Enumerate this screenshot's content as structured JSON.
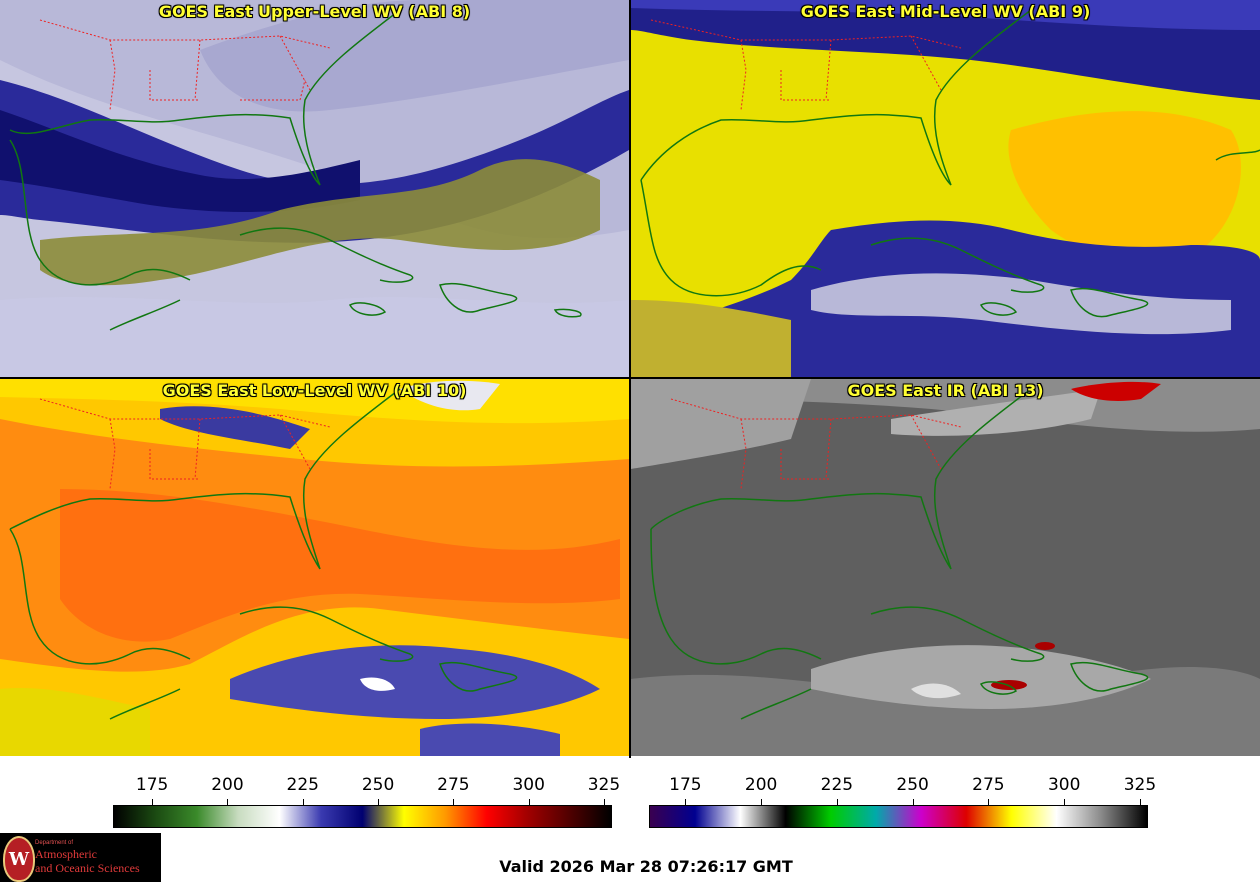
{
  "panels": [
    {
      "title": "GOES East Upper-Level WV (ABI 8)",
      "palette": "wv"
    },
    {
      "title": "GOES East Mid-Level WV (ABI 9)",
      "palette": "wv"
    },
    {
      "title": "GOES East Low-Level WV (ABI 10)",
      "palette": "wv"
    },
    {
      "title": "GOES East IR (ABI 13)",
      "palette": "ir"
    }
  ],
  "colorbars": {
    "wv": {
      "ticks": [
        "175",
        "200",
        "225",
        "250",
        "275",
        "300",
        "325"
      ],
      "tick_values": [
        175,
        200,
        225,
        250,
        275,
        300,
        325
      ],
      "range": [
        162,
        327
      ],
      "colors": [
        "#000000",
        "#1b4a12",
        "#3a8a2a",
        "#c8dcc0",
        "#ffffff",
        "#3a3ab0",
        "#000070",
        "#ffff00",
        "#ff9900",
        "#ff0000",
        "#a00000",
        "#500000",
        "#000000"
      ]
    },
    "ir": {
      "ticks": [
        "175",
        "200",
        "225",
        "250",
        "275",
        "300",
        "325"
      ],
      "tick_values": [
        175,
        200,
        225,
        250,
        275,
        300,
        325
      ],
      "range": [
        163,
        327
      ],
      "colors": [
        "#3a0050",
        "#000090",
        "#ffffff",
        "#000000",
        "#00cc00",
        "#00aaaa",
        "#cc00cc",
        "#dd0000",
        "#ffff00",
        "#ffffff",
        "#888888",
        "#000000"
      ]
    }
  },
  "valid_time": "Valid 2026 Mar 28 07:26:17 GMT",
  "logo": {
    "seal_letter": "W",
    "department": "Department of",
    "line1": "Atmospheric",
    "line2": "and Oceanic Sciences"
  },
  "colors": {
    "title": "#ffff33",
    "state_lines": "#ee2222",
    "coastline": "#117711"
  }
}
